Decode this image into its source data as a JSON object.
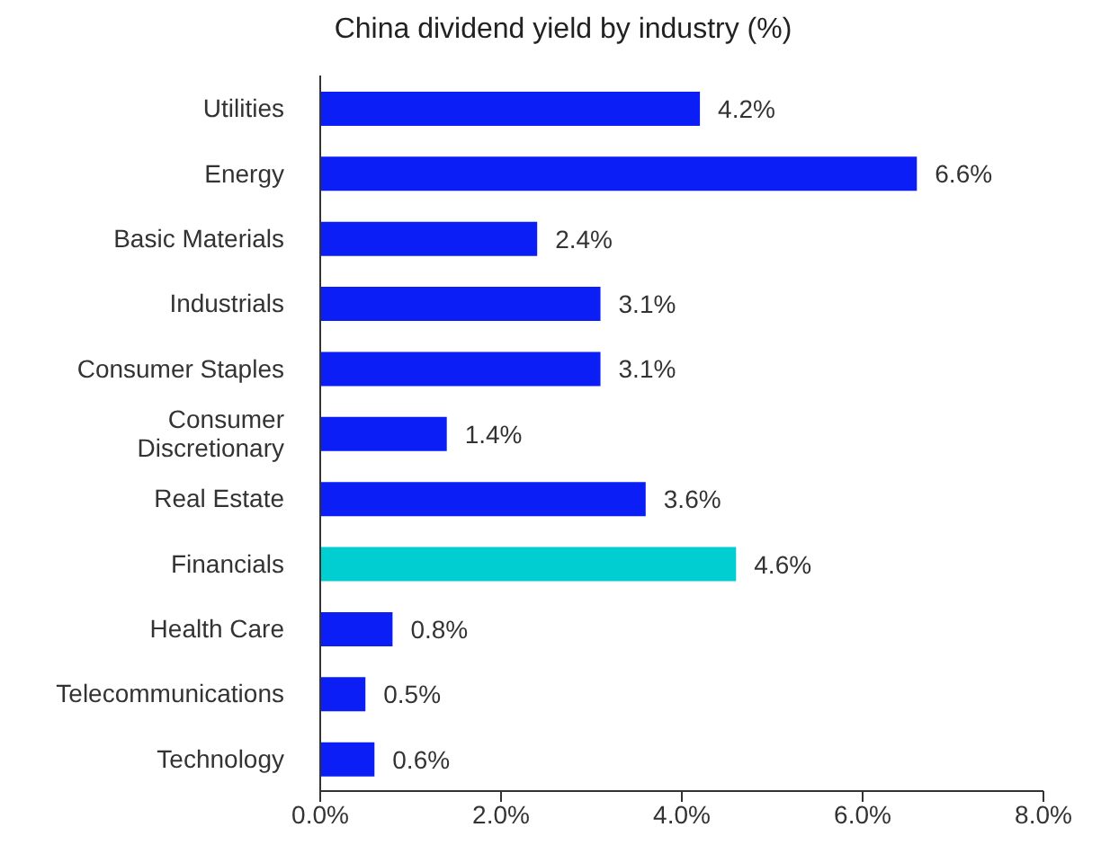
{
  "chart_data": {
    "type": "bar",
    "orientation": "horizontal",
    "title": "China dividend yield by industry (%)",
    "categories": [
      "Utilities",
      "Energy",
      "Basic Materials",
      "Industrials",
      "Consumer Staples",
      "Consumer Discretionary",
      "Real Estate",
      "Financials",
      "Health Care",
      "Telecommunications",
      "Technology"
    ],
    "values": [
      4.2,
      6.6,
      2.4,
      3.1,
      3.1,
      1.4,
      3.6,
      4.6,
      0.8,
      0.5,
      0.6
    ],
    "colors": [
      "#0a1ef5",
      "#0a1ef5",
      "#0a1ef5",
      "#0a1ef5",
      "#0a1ef5",
      "#0a1ef5",
      "#0a1ef5",
      "#00ced1",
      "#0a1ef5",
      "#0a1ef5",
      "#0a1ef5"
    ],
    "value_labels": [
      "4.2%",
      "6.6%",
      "2.4%",
      "3.1%",
      "3.1%",
      "1.4%",
      "3.6%",
      "4.6%",
      "0.8%",
      "0.5%",
      "0.6%"
    ],
    "xlim": [
      0,
      8
    ],
    "xticks": [
      {
        "value": 0,
        "label": "0.0%"
      },
      {
        "value": 2,
        "label": "2.0%"
      },
      {
        "value": 4,
        "label": "4.0%"
      },
      {
        "value": 6,
        "label": "6.0%"
      },
      {
        "value": 8,
        "label": "8.0%"
      }
    ],
    "grid": false,
    "legend": false
  }
}
